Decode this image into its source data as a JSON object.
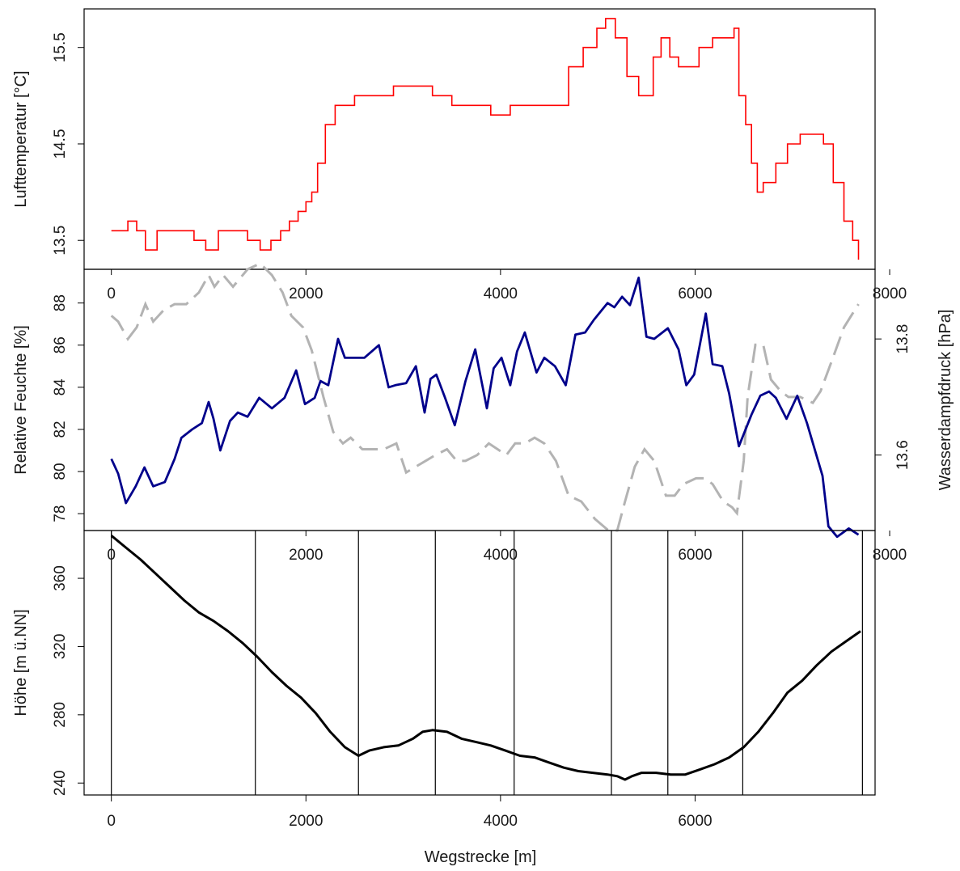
{
  "colors": {
    "temperature": "#ff0000",
    "humidity": "#00008b",
    "vapor": "#b3b3b3",
    "elevation": "#000000",
    "frame": "#000000"
  },
  "chart_data": [
    {
      "type": "line",
      "title": "",
      "xlabel": "",
      "ylabel": "Lufttemperatur [°C]",
      "xlim": [
        -280,
        7850
      ],
      "ylim": [
        13.2,
        15.9
      ],
      "ytick_labels": [
        "13.5",
        "14.5",
        "15.5"
      ],
      "ytick_values": [
        13.5,
        14.5,
        15.5
      ],
      "series": [
        {
          "color": "#ff0000",
          "x": [
            0,
            80,
            170,
            260,
            350,
            470,
            600,
            730,
            850,
            970,
            1100,
            1250,
            1400,
            1530,
            1640,
            1740,
            1830,
            1920,
            2000,
            2060,
            2120,
            2200,
            2300,
            2500,
            2700,
            2900,
            3100,
            3300,
            3500,
            3700,
            3900,
            4100,
            4300,
            4500,
            4700,
            4850,
            4990,
            5080,
            5180,
            5300,
            5420,
            5570,
            5650,
            5740,
            5830,
            5930,
            6040,
            6180,
            6300,
            6400,
            6450,
            6520,
            6580,
            6640,
            6700,
            6830,
            6950,
            7080,
            7230,
            7320,
            7420,
            7530,
            7620,
            7680
          ],
          "values": [
            13.6,
            13.6,
            13.7,
            13.6,
            13.4,
            13.6,
            13.6,
            13.6,
            13.5,
            13.4,
            13.6,
            13.6,
            13.5,
            13.4,
            13.5,
            13.6,
            13.7,
            13.8,
            13.9,
            14.0,
            14.3,
            14.7,
            14.9,
            15.0,
            15.0,
            15.1,
            15.1,
            15.0,
            14.9,
            14.9,
            14.8,
            14.9,
            14.9,
            14.9,
            15.3,
            15.5,
            15.7,
            15.8,
            15.6,
            15.2,
            15.0,
            15.4,
            15.6,
            15.4,
            15.3,
            15.3,
            15.5,
            15.6,
            15.6,
            15.7,
            15.0,
            14.7,
            14.3,
            14.0,
            14.1,
            14.3,
            14.5,
            14.6,
            14.6,
            14.5,
            14.1,
            13.7,
            13.5,
            13.3
          ]
        }
      ]
    },
    {
      "type": "line",
      "title": "",
      "xlabel": "",
      "ylabel": "Relative Feuchte [%]",
      "ylabel_right": "Wasserdampfdruck [hPa]",
      "xlim": [
        -280,
        7850
      ],
      "ylim": [
        77.2,
        89.6
      ],
      "ylim_right": [
        13.47,
        13.92
      ],
      "ytick_labels": [
        "78",
        "80",
        "82",
        "84",
        "86",
        "88"
      ],
      "ytick_values": [
        78,
        80,
        82,
        84,
        86,
        88
      ],
      "ytick_right_labels": [
        "13.6",
        "13.8"
      ],
      "ytick_right_values": [
        13.6,
        13.8
      ],
      "xtick_labels": [
        "0",
        "2000",
        "4000",
        "6000",
        "8000"
      ],
      "xtick_values": [
        0,
        2000,
        4000,
        6000,
        8000
      ],
      "series": [
        {
          "axis": "left",
          "color": "#00008b",
          "x": [
            0,
            70,
            150,
            250,
            340,
            430,
            550,
            650,
            720,
            830,
            930,
            1000,
            1050,
            1120,
            1220,
            1300,
            1400,
            1520,
            1650,
            1780,
            1900,
            1990,
            2090,
            2150,
            2230,
            2330,
            2400,
            2500,
            2600,
            2750,
            2850,
            2920,
            3030,
            3130,
            3220,
            3280,
            3340,
            3430,
            3530,
            3640,
            3740,
            3860,
            3930,
            4010,
            4100,
            4170,
            4250,
            4370,
            4450,
            4560,
            4670,
            4770,
            4870,
            4960,
            5100,
            5170,
            5250,
            5330,
            5420,
            5500,
            5580,
            5720,
            5830,
            5910,
            5990,
            6110,
            6180,
            6280,
            6350,
            6450,
            6580,
            6670,
            6760,
            6830,
            6940,
            7050,
            7150,
            7310,
            7370,
            7460,
            7580,
            7680
          ],
          "values": [
            80.6,
            79.9,
            78.5,
            79.3,
            80.2,
            79.3,
            79.5,
            80.6,
            81.6,
            82.0,
            82.3,
            83.3,
            82.5,
            81.0,
            82.4,
            82.8,
            82.6,
            83.5,
            83.0,
            83.5,
            84.8,
            83.2,
            83.5,
            84.3,
            84.1,
            86.3,
            85.4,
            85.4,
            85.4,
            86.0,
            84.0,
            84.1,
            84.2,
            85.0,
            82.8,
            84.4,
            84.6,
            83.5,
            82.2,
            84.3,
            85.8,
            83.0,
            84.9,
            85.4,
            84.1,
            85.7,
            86.6,
            84.7,
            85.4,
            85.0,
            84.1,
            86.5,
            86.6,
            87.2,
            88.0,
            87.8,
            88.3,
            87.9,
            89.2,
            86.4,
            86.3,
            86.8,
            85.8,
            84.1,
            84.6,
            87.5,
            85.1,
            85.0,
            83.7,
            81.2,
            82.7,
            83.6,
            83.8,
            83.5,
            82.5,
            83.6,
            82.3,
            79.8,
            77.4,
            76.9,
            77.3,
            77.0
          ]
        },
        {
          "axis": "right",
          "color": "#b3b3b3",
          "x": [
            0,
            70,
            170,
            260,
            350,
            430,
            540,
            650,
            770,
            900,
            1000,
            1060,
            1150,
            1250,
            1400,
            1530,
            1650,
            1760,
            1850,
            1970,
            2060,
            2180,
            2280,
            2380,
            2460,
            2580,
            2680,
            2800,
            2930,
            3030,
            3130,
            3230,
            3330,
            3450,
            3550,
            3640,
            3760,
            3880,
            3970,
            4060,
            4150,
            4250,
            4350,
            4450,
            4570,
            4700,
            4830,
            4970,
            5110,
            5200,
            5280,
            5380,
            5480,
            5580,
            5700,
            5790,
            5880,
            6010,
            6100,
            6180,
            6290,
            6380,
            6430,
            6500,
            6540,
            6620,
            6700,
            6780,
            6880,
            6960,
            7080,
            7210,
            7290,
            7400,
            7530,
            7680
          ],
          "values": [
            13.84,
            13.83,
            13.8,
            13.82,
            13.86,
            13.83,
            13.85,
            13.86,
            13.86,
            13.88,
            13.91,
            13.89,
            13.91,
            13.89,
            13.92,
            13.93,
            13.91,
            13.88,
            13.84,
            13.82,
            13.78,
            13.7,
            13.64,
            13.62,
            13.63,
            13.61,
            13.61,
            13.61,
            13.62,
            13.57,
            13.58,
            13.59,
            13.6,
            13.61,
            13.59,
            13.59,
            13.6,
            13.62,
            13.61,
            13.6,
            13.62,
            13.62,
            13.63,
            13.62,
            13.59,
            13.53,
            13.52,
            13.49,
            13.47,
            13.47,
            13.52,
            13.58,
            13.61,
            13.59,
            13.53,
            13.53,
            13.55,
            13.56,
            13.56,
            13.55,
            13.52,
            13.51,
            13.5,
            13.59,
            13.7,
            13.79,
            13.79,
            13.73,
            13.71,
            13.7,
            13.7,
            13.69,
            13.71,
            13.76,
            13.82,
            13.86
          ]
        }
      ]
    },
    {
      "type": "line",
      "title": "",
      "xlabel": "Wegstrecke [m]",
      "ylabel": "Höhe [m ü.NN]",
      "xlim": [
        -280,
        7850
      ],
      "ylim": [
        233,
        388
      ],
      "ytick_labels": [
        "240",
        "280",
        "320",
        "360"
      ],
      "ytick_values": [
        240,
        280,
        320,
        360
      ],
      "xtick_labels": [
        "0",
        "2000",
        "4000",
        "6000"
      ],
      "xtick_values": [
        0,
        2000,
        4000,
        6000
      ],
      "inner_xtick_labels": [
        "0",
        "2000",
        "4000",
        "6000",
        "8000"
      ],
      "vertical_lines": [
        0,
        1480,
        2540,
        3330,
        4140,
        5140,
        5720,
        6490,
        7720
      ],
      "series": [
        {
          "color": "#000000",
          "x": [
            0,
            150,
            300,
            450,
            600,
            750,
            900,
            1050,
            1200,
            1350,
            1500,
            1650,
            1800,
            1950,
            2100,
            2250,
            2400,
            2540,
            2650,
            2800,
            2950,
            3100,
            3200,
            3300,
            3450,
            3600,
            3750,
            3900,
            4050,
            4200,
            4350,
            4500,
            4650,
            4800,
            4950,
            5100,
            5200,
            5280,
            5350,
            5450,
            5600,
            5750,
            5900,
            6050,
            6200,
            6350,
            6500,
            6650,
            6800,
            6950,
            7100,
            7250,
            7400,
            7550,
            7700
          ],
          "values": [
            385,
            378,
            371,
            363,
            355,
            347,
            340,
            335,
            329,
            322,
            314,
            305,
            297,
            290,
            281,
            270,
            261,
            256,
            259,
            261,
            262,
            266,
            270,
            271,
            270,
            266,
            264,
            262,
            259,
            256,
            255,
            252,
            249,
            247,
            246,
            245,
            244,
            242,
            244,
            246,
            246,
            245,
            245,
            248,
            251,
            255,
            261,
            270,
            281,
            293,
            300,
            309,
            317,
            323,
            329
          ]
        }
      ]
    }
  ]
}
